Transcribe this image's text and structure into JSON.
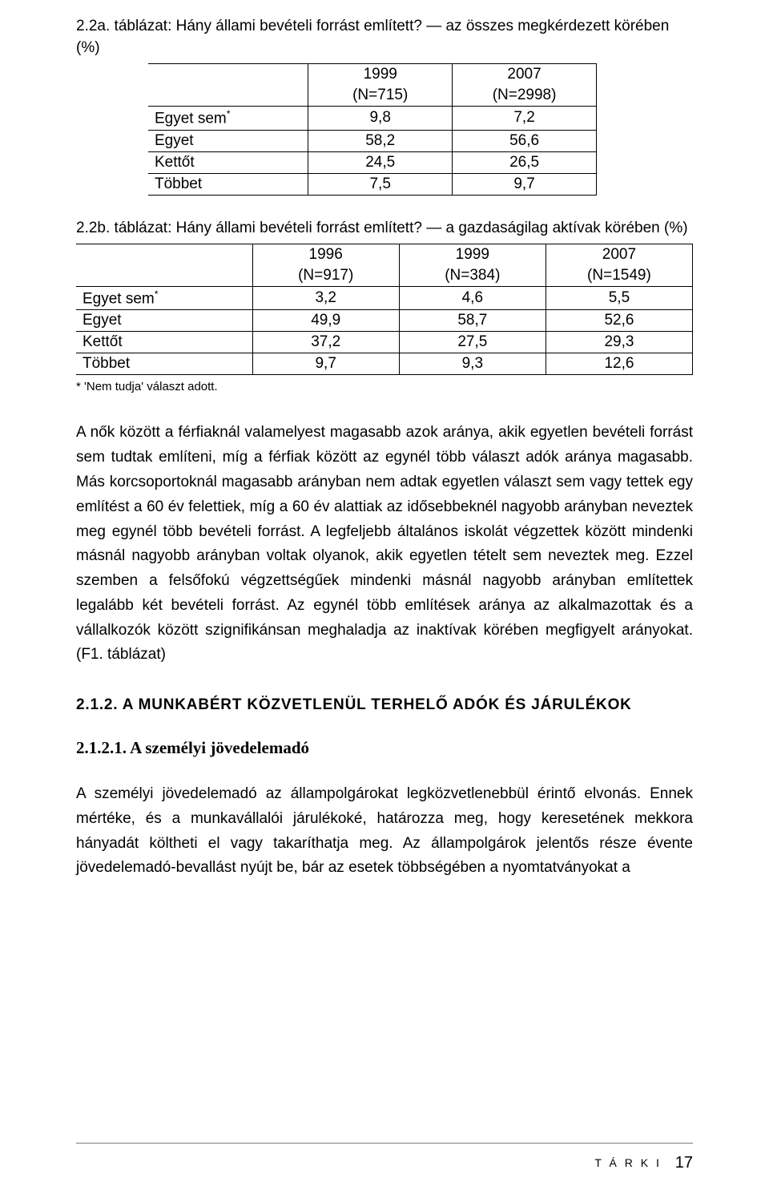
{
  "table1": {
    "caption": "2.2a. táblázat: Hány állami bevételi forrást említett? — az összes megkérdezett körében (%)",
    "header_years": [
      "1999",
      "2007"
    ],
    "header_ns": [
      "(N=715)",
      "(N=2998)"
    ],
    "rows": [
      {
        "label": "Egyet sem",
        "star": true,
        "vals": [
          "9,8",
          "7,2"
        ]
      },
      {
        "label": "Egyet",
        "star": false,
        "vals": [
          "58,2",
          "56,6"
        ]
      },
      {
        "label": "Kettőt",
        "star": false,
        "vals": [
          "24,5",
          "26,5"
        ]
      },
      {
        "label": "Többet",
        "star": false,
        "vals": [
          "7,5",
          "9,7"
        ]
      }
    ]
  },
  "table2": {
    "caption": "2.2b. táblázat: Hány állami bevételi forrást említett? — a gazdaságilag aktívak körében (%)",
    "header_years": [
      "1996",
      "1999",
      "2007"
    ],
    "header_ns": [
      "(N=917)",
      "(N=384)",
      "(N=1549)"
    ],
    "rows": [
      {
        "label": "Egyet sem",
        "star": true,
        "vals": [
          "3,2",
          "4,6",
          "5,5"
        ]
      },
      {
        "label": "Egyet",
        "star": false,
        "vals": [
          "49,9",
          "58,7",
          "52,6"
        ]
      },
      {
        "label": "Kettőt",
        "star": false,
        "vals": [
          "37,2",
          "27,5",
          "29,3"
        ]
      },
      {
        "label": "Többet",
        "star": false,
        "vals": [
          "9,7",
          "9,3",
          "12,6"
        ]
      }
    ],
    "footnote": "* 'Nem tudja' választ adott."
  },
  "paragraph1": "A nők között a férfiaknál valamelyest magasabb azok aránya, akik egyetlen bevételi forrást sem tudtak említeni, míg a férfiak között az egynél több választ adók aránya magasabb. Más korcsoportoknál magasabb arányban nem adtak egyetlen választ sem vagy tettek egy említést a 60 év felettiek, míg a 60 év alattiak az idősebbeknél nagyobb arányban neveztek meg egynél több bevételi forrást. A legfeljebb általános iskolát végzettek között mindenki másnál nagyobb arányban voltak olyanok, akik egyetlen tételt sem neveztek meg. Ezzel szemben a felsőfokú végzettségűek mindenki másnál nagyobb arányban említettek legalább két bevételi forrást. Az egynél több említések aránya az alkalmazottak és a vállalkozók között szignifikánsan meghaladja az inaktívak körében megfigyelt arányokat. (F1. táblázat)",
  "heading2": "2.1.2. A MUNKABÉRT KÖZVETLENÜL TERHELŐ ADÓK ÉS JÁRULÉKOK",
  "heading3": "2.1.2.1. A személyi jövedelemadó",
  "paragraph2": "A személyi jövedelemadó az állampolgárokat legközvetlenebbül érintő elvonás. Ennek mértéke, és a munkavállalói járulékoké, határozza meg, hogy keresetének mekkora hányadát költheti el vagy takaríthatja meg. Az állampolgárok jelentős része évente jövedelemadó-bevallást nyújt be, bár az esetek többségében a nyomtatványokat a",
  "footer": {
    "org": "T Á R K I",
    "page": "17"
  },
  "colors": {
    "text": "#000000",
    "background": "#ffffff",
    "footer_line": "#7a7a7a"
  }
}
